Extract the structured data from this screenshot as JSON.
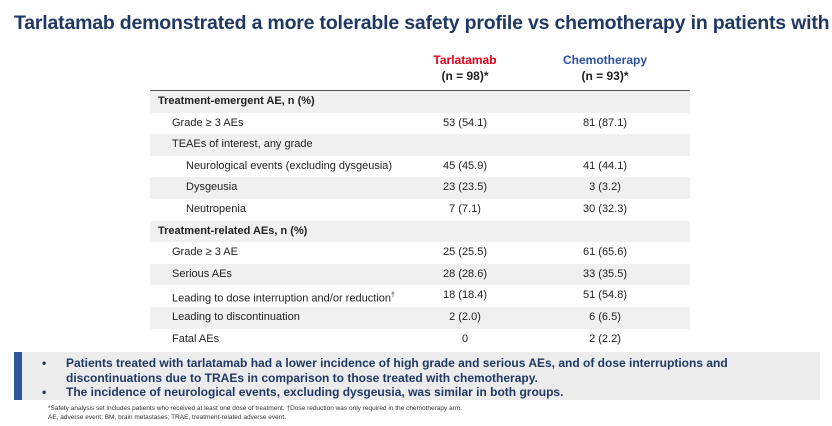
{
  "header": {
    "title": "Tarlatamab demonstrated a more tolerable safety profile vs chemotherapy in patients with BM"
  },
  "table": {
    "columns": [
      {
        "name": "Tarlatamab",
        "n": "(n = 98)*",
        "color": "#e2001a"
      },
      {
        "name": "Chemotherapy",
        "n": "(n = 93)*",
        "color": "#2e4fa3"
      }
    ],
    "sections": [
      {
        "title": "Treatment-emergent AE, n (%)",
        "rows": [
          {
            "label": "Grade ≥ 3 AEs",
            "values": [
              "53 (54.1)",
              "81 (87.1)"
            ]
          },
          {
            "label": "TEAEs of interest, any grade",
            "values": [],
            "items": [
              {
                "label": "Neurological events (excluding dysgeusia)",
                "values": [
                  "45 (45.9)",
                  "41 (44.1)"
                ]
              },
              {
                "label": "Dysgeusia",
                "values": [
                  "23 (23.5)",
                  "3 (3.2)"
                ]
              },
              {
                "label": "Neutropenia",
                "values": [
                  "7 (7.1)",
                  "30 (32.3)"
                ]
              }
            ]
          }
        ]
      },
      {
        "title": "Treatment-related AEs, n (%)",
        "rows": [
          {
            "label": "Grade ≥ 3 AE",
            "values": [
              "25 (25.5)",
              "61 (65.6)"
            ]
          },
          {
            "label": "Serious AEs",
            "values": [
              "28 (28.6)",
              "33 (35.5)"
            ]
          },
          {
            "label": "Leading to dose interruption and/or reduction",
            "note": "†",
            "values": [
              "18 (18.4)",
              "51 (54.8)"
            ]
          },
          {
            "label": "Leading to discontinuation",
            "values": [
              "2 (2.0)",
              "6 (6.5)"
            ]
          },
          {
            "label": "Fatal AEs",
            "values": [
              "0",
              "2 (2.2)"
            ]
          }
        ]
      }
    ]
  },
  "bullets": [
    "Patients treated with tarlatamab had a lower incidence of high grade and serious AEs, and of dose interruptions and discontinuations due to TRAEs in comparison to those treated with chemotherapy.",
    "The incidence of neurological events, excluding dysgeusia, was similar in both groups."
  ],
  "footnotes": [
    "*Safety analysis set includes patients who received at least one dose of treatment. †Dose reduction was only required in the chemotherapy arm.",
    "AE, adverse event; BM, brain metastases; TRAE, treatment-related adverse event."
  ]
}
